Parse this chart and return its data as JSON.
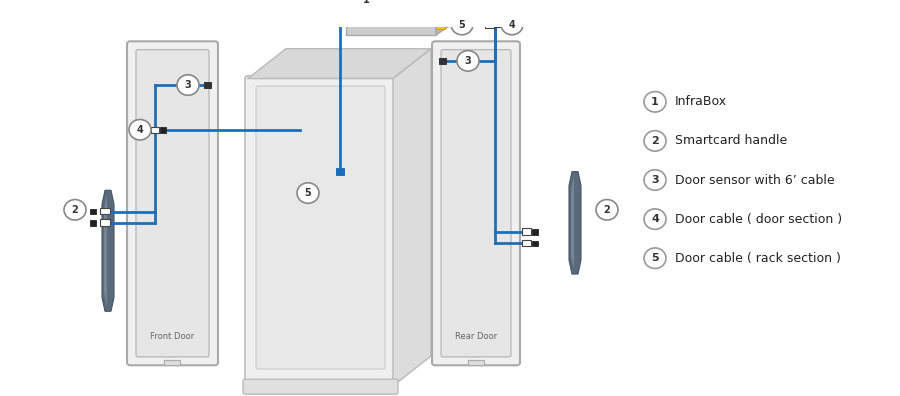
{
  "bg_color": "#ffffff",
  "legend_items": [
    {
      "num": "1",
      "text": "InfraBox"
    },
    {
      "num": "2",
      "text": "Smartcard handle"
    },
    {
      "num": "3",
      "text": "Door sensor with 6’ cable"
    },
    {
      "num": "4",
      "text": "Door cable ( door section )"
    },
    {
      "num": "5",
      "text": "Door cable ( rack section )"
    }
  ],
  "cable_color": "#1c6fba",
  "yellow_color": "#f5c800",
  "dark_sq": "#222222",
  "light_gray": "#e8e8e8",
  "mid_gray": "#c0c0c0",
  "frame_gray": "#b0b0b0",
  "rack_face": "#eeeeee",
  "rack_top": "#d5d5d5",
  "rack_right": "#e0e0e0",
  "door_face": "#f2f2f2",
  "door_inner": "#e5e5e5",
  "handle_grad1": "#6a7a8a",
  "handle_grad2": "#a0b0c0",
  "infrabox_color": "#cccccc"
}
